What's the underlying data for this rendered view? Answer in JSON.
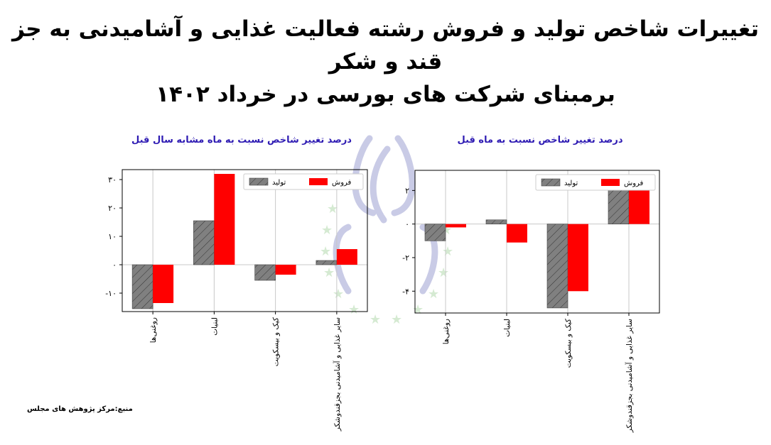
{
  "title": {
    "line1": "تغییرات شاخص تولید و فروش رشته فعالیت غذایی و آشامیدنی به جز قند و شکر",
    "line2": "برمبنای شرکت های بورسی در خرداد  ۱۴۰۲"
  },
  "source": "منبع:مرکز پژوهش های مجلس",
  "chart_data": [
    {
      "type": "bar",
      "title": "درصد تغییر شاخص  نسبت به ماه مشابه سال قبل",
      "categories": [
        "روغنی‌ها",
        "لبنیات",
        "کیک و بیسکویت",
        "سایر غذایی و آشامیدنی بجزقندوشکر"
      ],
      "series": [
        {
          "name": "تولید",
          "values": [
            -15.5,
            15.5,
            -5.5,
            1.5
          ],
          "color": "#808080",
          "hatch": true
        },
        {
          "name": "فروش",
          "values": [
            -13.5,
            32,
            -3.5,
            5.5
          ],
          "color": "#ff0000",
          "hatch": false
        }
      ],
      "ylim": [
        -16.5,
        33.5
      ],
      "yticks": [
        -10,
        0,
        10,
        20,
        30
      ],
      "yticklabels": [
        "-۱۰",
        "۰",
        "۱۰",
        "۲۰",
        "۳۰"
      ],
      "grid": "x",
      "legend": "top-right"
    },
    {
      "type": "bar",
      "title": "درصد تغییر شاخص  نسبت به ماه  قبل",
      "categories": [
        "روغنی‌ها",
        "لبنیات",
        "کیک و بیسکویت",
        "سایر غذایی و آشامیدنی بجزقندوشکر"
      ],
      "series": [
        {
          "name": "تولید",
          "values": [
            -1.0,
            0.25,
            -5.0,
            2.8
          ],
          "color": "#808080",
          "hatch": true
        },
        {
          "name": "فروش",
          "values": [
            -0.2,
            -1.1,
            -4.0,
            2.5
          ],
          "color": "#ff0000",
          "hatch": false
        }
      ],
      "ylim": [
        -5.3,
        3.2
      ],
      "yticks": [
        -4,
        -2,
        0,
        2
      ],
      "yticklabels": [
        "-۴",
        "-۲",
        "۰",
        "۲"
      ],
      "grid": "x",
      "legend": "top-right"
    }
  ]
}
